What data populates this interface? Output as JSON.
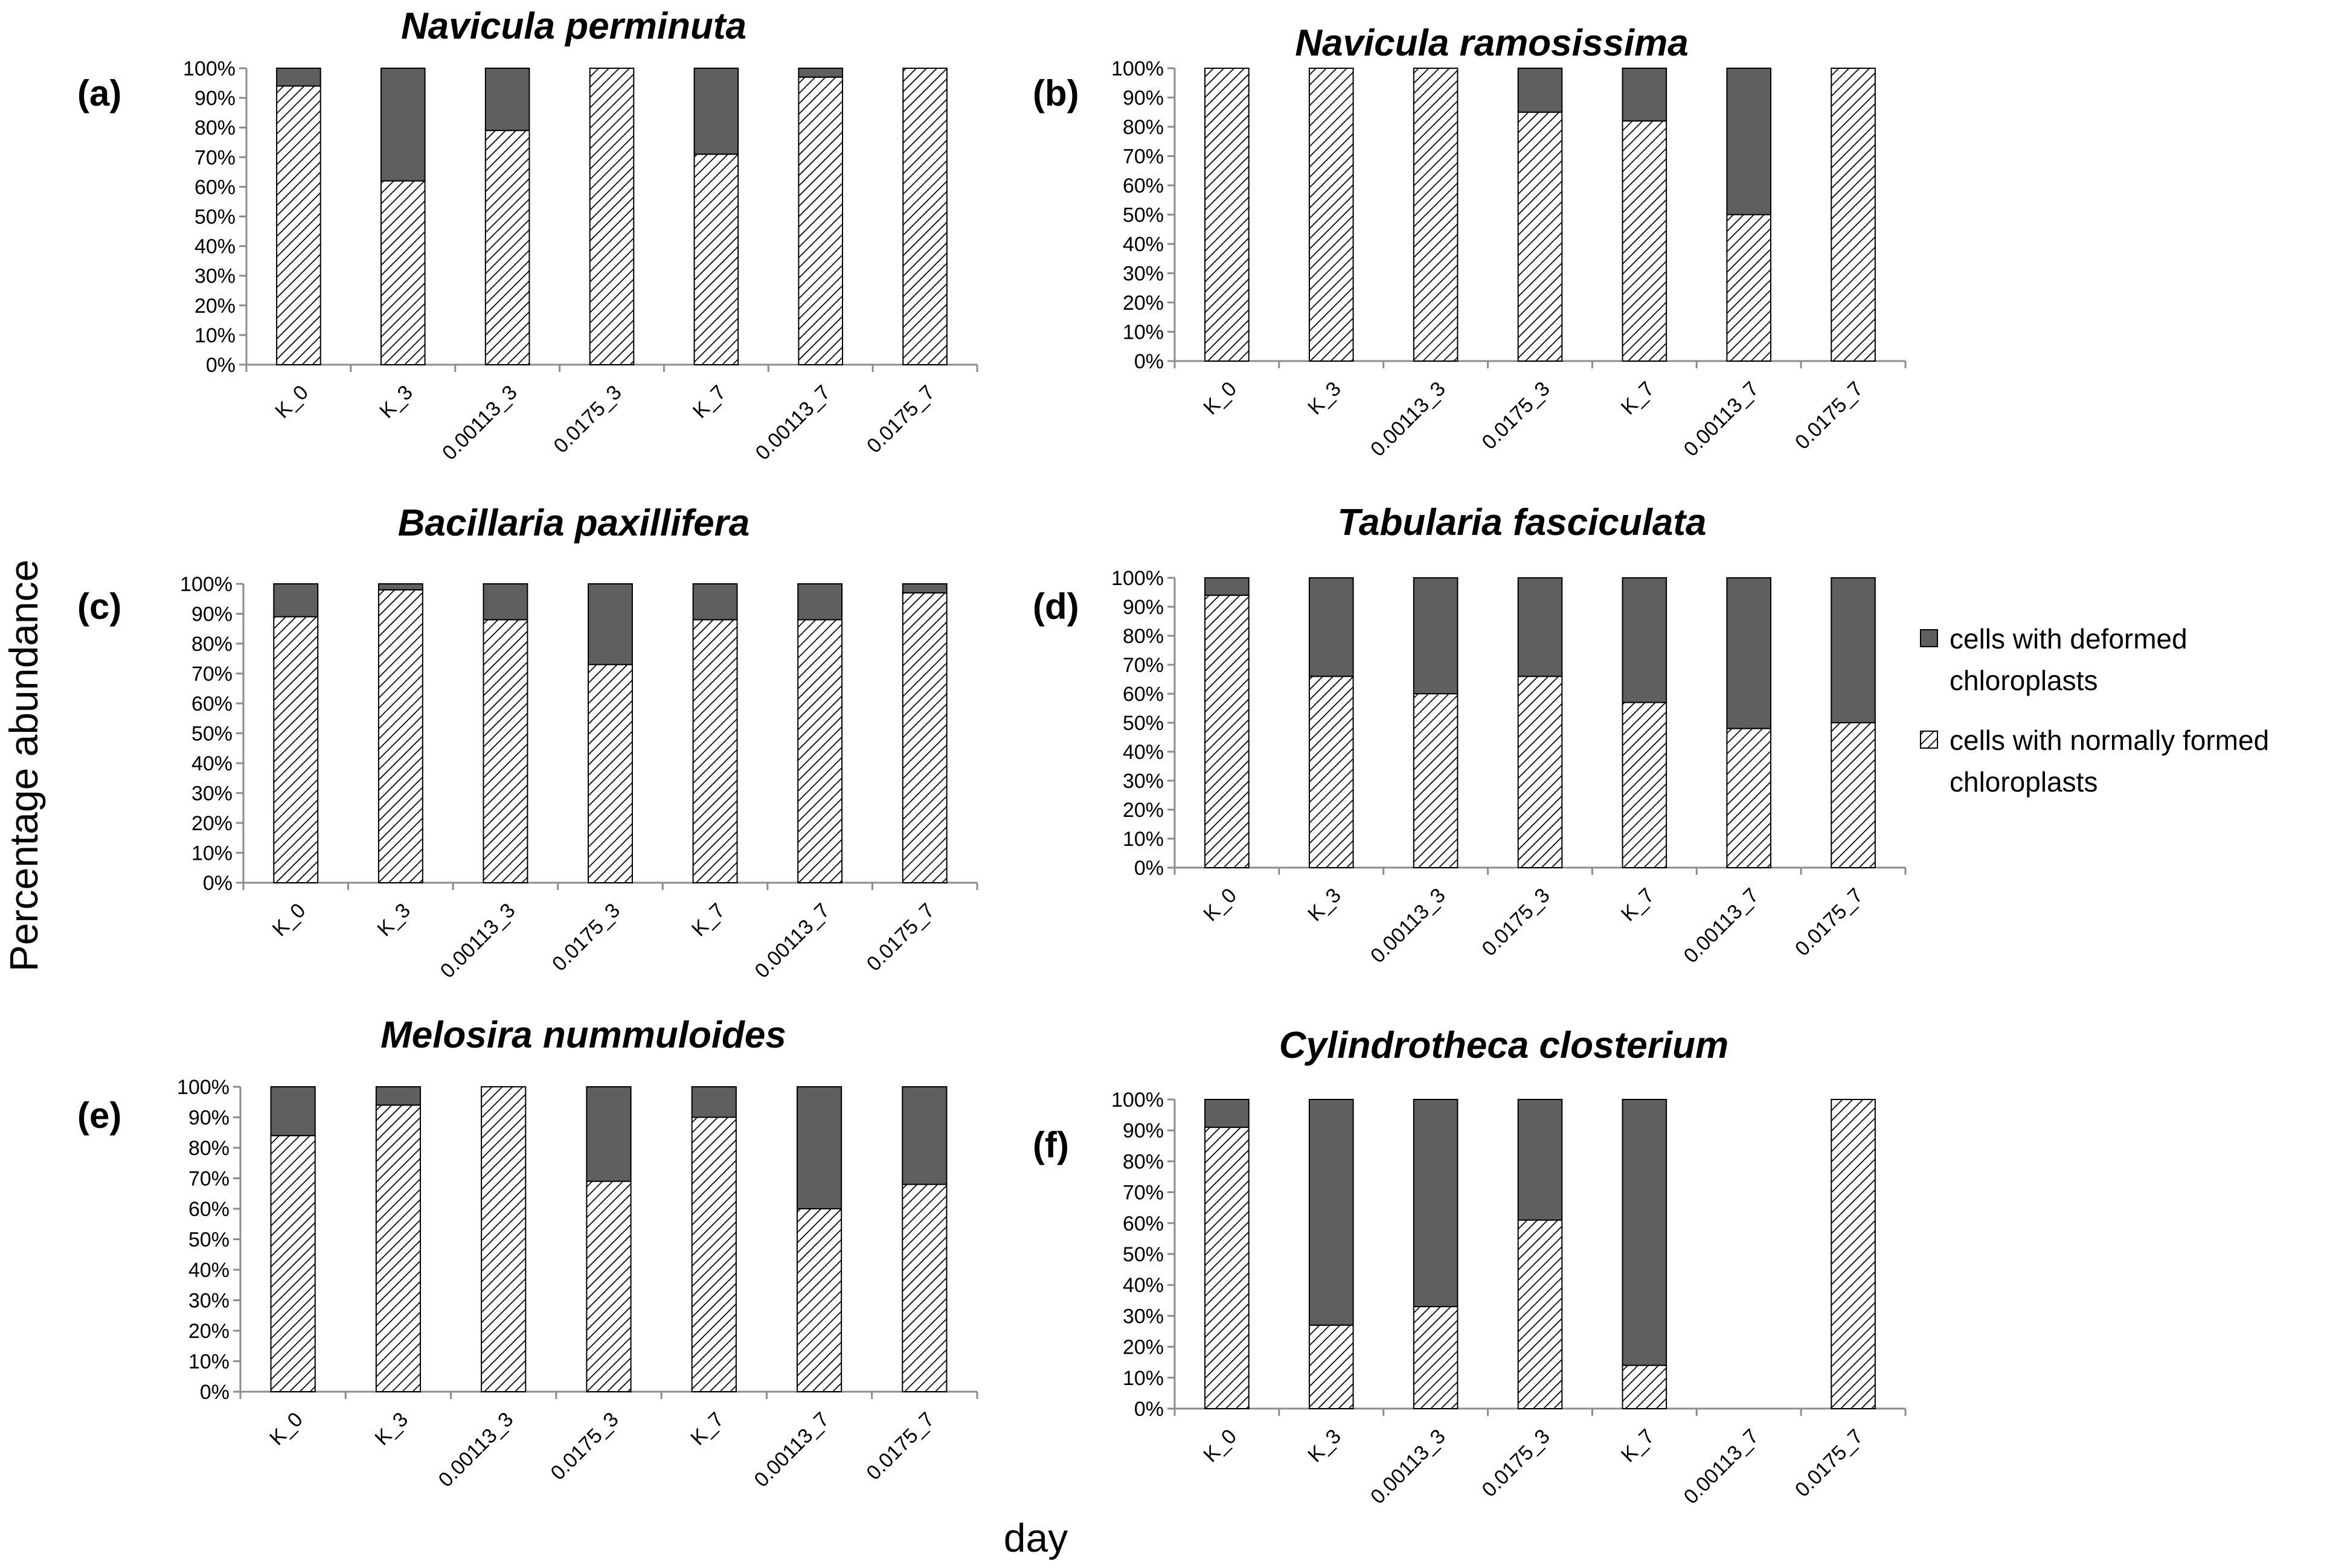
{
  "colors": {
    "deformed_fill": "#5f5f5f",
    "normal_hatch": "#000000",
    "background": "#ffffff",
    "axis": "#8c8c8c"
  },
  "axes": {
    "ylabel": "Percentage abundance",
    "xlabel": "day"
  },
  "legend": {
    "deformed_line1": "cells with deformed",
    "deformed_line2": "chloroplasts",
    "normal_line1": "cells with normally formed",
    "normal_line2": "chloroplasts"
  },
  "chart_data": [
    {
      "type": "bar",
      "stacked": true,
      "letter": "(a)",
      "title": "Navicula perminuta",
      "categories": [
        "K_0",
        "K_3",
        "0.00113_3",
        "0.0175_3",
        "K_7",
        "0.00113_7",
        "0.0175_7"
      ],
      "y_ticks": [
        "0%",
        "10%",
        "20%",
        "30%",
        "40%",
        "50%",
        "60%",
        "70%",
        "80%",
        "90%",
        "100%"
      ],
      "ylim": [
        0,
        100
      ],
      "series": [
        {
          "name": "cells with normally formed chloroplasts",
          "values": [
            94,
            62,
            79,
            100,
            71,
            97,
            100
          ]
        },
        {
          "name": "cells with deformed chloroplasts",
          "values": [
            6,
            38,
            21,
            0,
            29,
            3,
            0
          ]
        }
      ]
    },
    {
      "type": "bar",
      "stacked": true,
      "letter": "(b)",
      "title": "Navicula ramosissima",
      "categories": [
        "K_0",
        "K_3",
        "0.00113_3",
        "0.0175_3",
        "K_7",
        "0.00113_7",
        "0.0175_7"
      ],
      "y_ticks": [
        "0%",
        "10%",
        "20%",
        "30%",
        "40%",
        "50%",
        "60%",
        "70%",
        "80%",
        "90%",
        "100%"
      ],
      "ylim": [
        0,
        100
      ],
      "series": [
        {
          "name": "cells with normally formed chloroplasts",
          "values": [
            100,
            100,
            100,
            85,
            82,
            50,
            100
          ]
        },
        {
          "name": "cells with deformed chloroplasts",
          "values": [
            0,
            0,
            0,
            15,
            18,
            50,
            0
          ]
        }
      ]
    },
    {
      "type": "bar",
      "stacked": true,
      "letter": "(c)",
      "title": "Bacillaria paxillifera",
      "categories": [
        "K_0",
        "K_3",
        "0.00113_3",
        "0.0175_3",
        "K_7",
        "0.00113_7",
        "0.0175_7"
      ],
      "y_ticks": [
        "0%",
        "10%",
        "20%",
        "30%",
        "40%",
        "50%",
        "60%",
        "70%",
        "80%",
        "90%",
        "100%"
      ],
      "ylim": [
        0,
        100
      ],
      "series": [
        {
          "name": "cells with normally formed chloroplasts",
          "values": [
            89,
            98,
            88,
            73,
            88,
            88,
            97
          ]
        },
        {
          "name": "cells with deformed chloroplasts",
          "values": [
            11,
            2,
            12,
            27,
            12,
            12,
            3
          ]
        }
      ]
    },
    {
      "type": "bar",
      "stacked": true,
      "letter": "(d)",
      "title": "Tabularia fasciculata",
      "categories": [
        "K_0",
        "K_3",
        "0.00113_3",
        "0.0175_3",
        "K_7",
        "0.00113_7",
        "0.0175_7"
      ],
      "y_ticks": [
        "0%",
        "10%",
        "20%",
        "30%",
        "40%",
        "50%",
        "60%",
        "70%",
        "80%",
        "90%",
        "100%"
      ],
      "ylim": [
        0,
        100
      ],
      "series": [
        {
          "name": "cells with normally formed chloroplasts",
          "values": [
            94,
            66,
            60,
            66,
            57,
            48,
            50
          ]
        },
        {
          "name": "cells with deformed chloroplasts",
          "values": [
            6,
            34,
            40,
            34,
            43,
            52,
            50
          ]
        }
      ]
    },
    {
      "type": "bar",
      "stacked": true,
      "letter": "(e)",
      "title": "Melosira nummuloides",
      "categories": [
        "K_0",
        "K_3",
        "0.00113_3",
        "0.0175_3",
        "K_7",
        "0.00113_7",
        "0.0175_7"
      ],
      "y_ticks": [
        "0%",
        "10%",
        "20%",
        "30%",
        "40%",
        "50%",
        "60%",
        "70%",
        "80%",
        "90%",
        "100%"
      ],
      "ylim": [
        0,
        100
      ],
      "series": [
        {
          "name": "cells with normally formed chloroplasts",
          "values": [
            84,
            94,
            100,
            69,
            90,
            60,
            68
          ]
        },
        {
          "name": "cells with deformed chloroplasts",
          "values": [
            16,
            6,
            0,
            31,
            10,
            40,
            32
          ]
        }
      ]
    },
    {
      "type": "bar",
      "stacked": true,
      "letter": "(f)",
      "title": "Cylindrotheca closterium",
      "categories": [
        "K_0",
        "K_3",
        "0.00113_3",
        "0.0175_3",
        "K_7",
        "0.00113_7",
        "0.0175_7"
      ],
      "y_ticks": [
        "0%",
        "10%",
        "20%",
        "30%",
        "40%",
        "50%",
        "60%",
        "70%",
        "80%",
        "90%",
        "100%"
      ],
      "ylim": [
        0,
        100
      ],
      "series": [
        {
          "name": "cells with normally formed chloroplasts",
          "values": [
            91,
            27,
            33,
            61,
            14,
            0,
            100
          ]
        },
        {
          "name": "cells with deformed chloroplasts",
          "values": [
            9,
            73,
            67,
            39,
            86,
            0,
            0
          ]
        }
      ]
    }
  ]
}
